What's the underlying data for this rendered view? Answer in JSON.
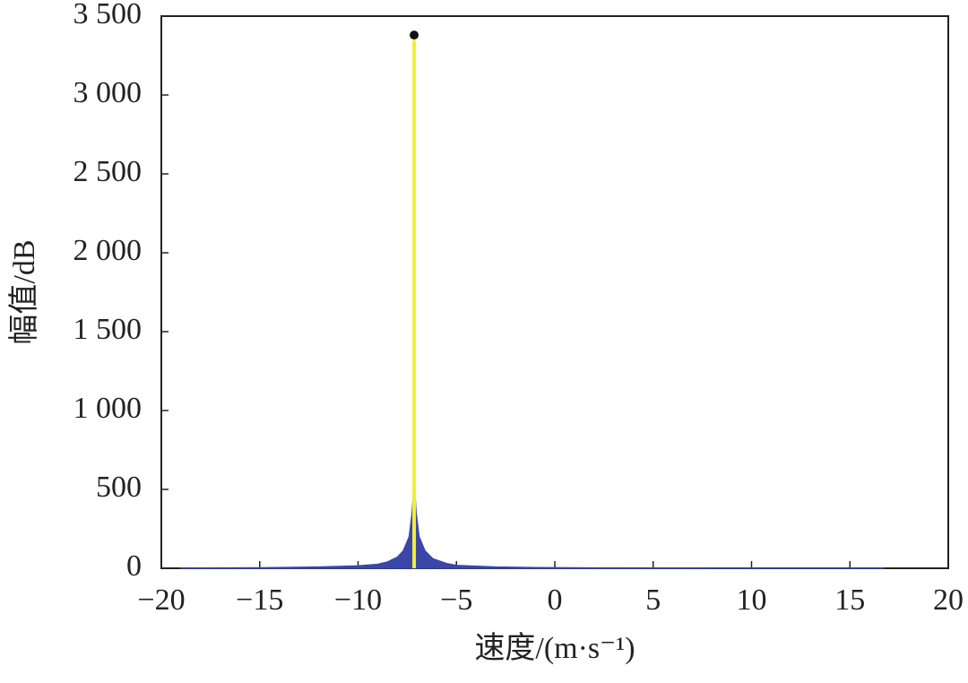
{
  "chart_data": {
    "type": "line",
    "x_label": "速度/(m·s⁻¹)",
    "y_label": "幅值/dB",
    "xlim": [
      -20,
      20
    ],
    "xticks": [
      {
        "value": -20,
        "label": "−20"
      },
      {
        "value": -15,
        "label": "−15"
      },
      {
        "value": -10,
        "label": "−10"
      },
      {
        "value": -5,
        "label": "−5"
      },
      0,
      5,
      10,
      15,
      20
    ],
    "ylim": [
      0,
      3500
    ],
    "yticks": [
      0,
      500,
      {
        "value": 1000,
        "label": "1 000"
      },
      {
        "value": 1500,
        "label": "1 500"
      },
      {
        "value": 2000,
        "label": "2 000"
      },
      {
        "value": 2500,
        "label": "2 500"
      },
      {
        "value": 3000,
        "label": "3 000"
      },
      {
        "value": 3500,
        "label": "3 500"
      }
    ],
    "grid": false,
    "series": [
      {
        "color": "#3a46a8",
        "fill": true,
        "marker": false,
        "x": [
          -19,
          -15,
          -12,
          -10,
          -9,
          -8.5,
          -8,
          -7.7,
          -7.4,
          -7.25,
          -7.15,
          -7.05,
          -6.9,
          -6.6,
          -6.2,
          -5.5,
          -5,
          -3,
          -1,
          2,
          8,
          16.7
        ],
        "values": [
          1,
          3,
          8,
          15,
          25,
          40,
          70,
          110,
          200,
          350,
          550,
          350,
          200,
          110,
          60,
          30,
          18,
          8,
          4,
          2,
          1,
          0.5
        ]
      },
      {
        "color": "#f2ee3a",
        "fill": false,
        "marker": false,
        "x": [
          -7.15,
          -7.15
        ],
        "values": [
          0,
          3350
        ]
      },
      {
        "color": "#111111",
        "fill": false,
        "marker": true,
        "x": [
          -7.15
        ],
        "values": [
          3380
        ]
      }
    ]
  }
}
